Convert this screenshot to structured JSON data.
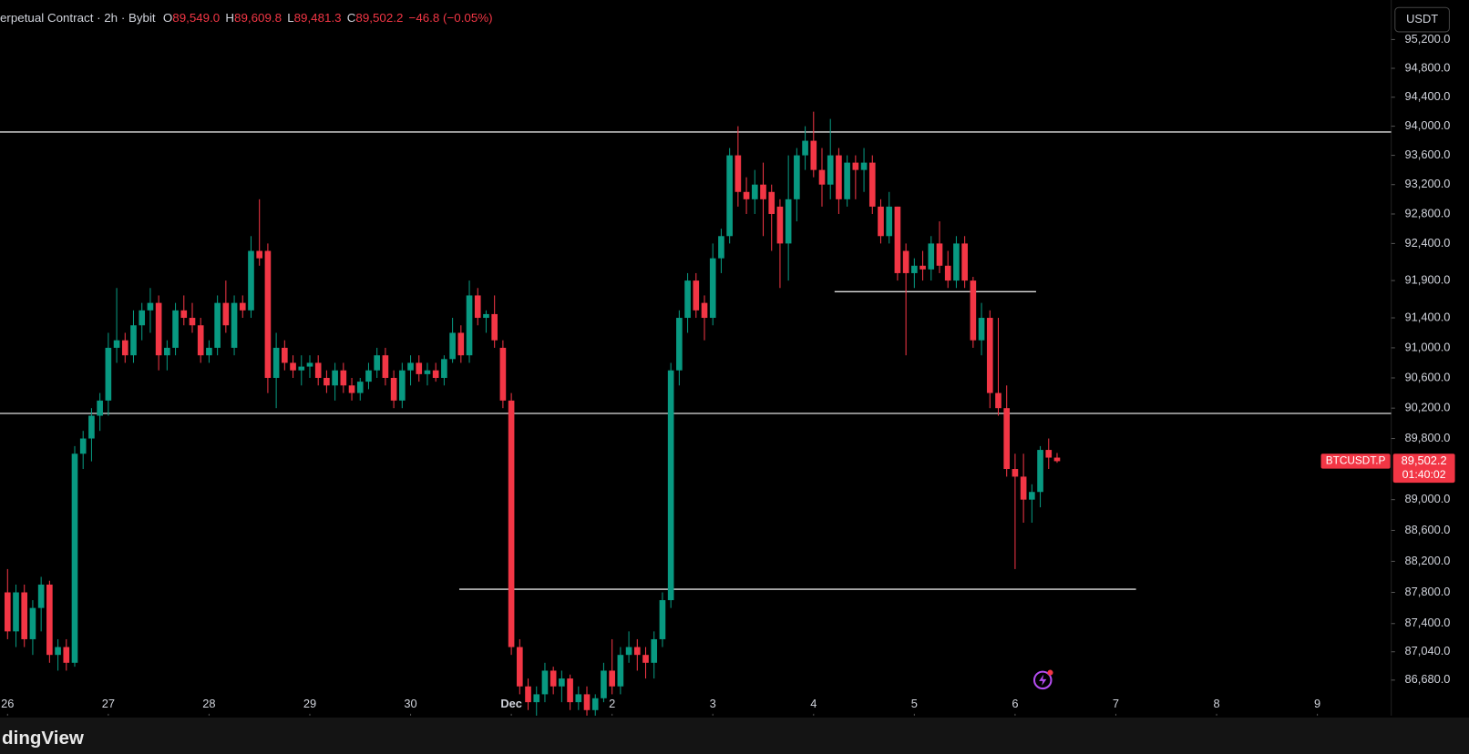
{
  "chart_data": {
    "type": "candlestick",
    "title": "erpetual Contract · 2h · Bybit",
    "ohlc_header": [
      {
        "key": "O",
        "value": "89,549.0"
      },
      {
        "key": "H",
        "value": "89,609.8"
      },
      {
        "key": "L",
        "value": "89,481.3"
      },
      {
        "key": "C",
        "value": "89,502.2"
      }
    ],
    "change": "−46.8 (−0.05%)",
    "currency_button": "USDT",
    "symbol": "BTCUSDT.P",
    "last_price": {
      "value": 89502.2,
      "label": "89,502.2"
    },
    "countdown": "01:40:02",
    "footer": "dingView",
    "log_scale": true,
    "up_color": "#089981",
    "down_color": "#f23645",
    "xlim": [
      -0.9,
      164.8
    ],
    "xticks": [
      {
        "value": 0,
        "label": "26"
      },
      {
        "value": 12,
        "label": "27"
      },
      {
        "value": 24,
        "label": "28"
      },
      {
        "value": 36,
        "label": "29"
      },
      {
        "value": 48,
        "label": "30"
      },
      {
        "value": 60,
        "label": "Dec"
      },
      {
        "value": 72,
        "label": "2"
      },
      {
        "value": 84,
        "label": "3"
      },
      {
        "value": 96,
        "label": "4"
      },
      {
        "value": 108,
        "label": "5"
      },
      {
        "value": 120,
        "label": "6"
      },
      {
        "value": 132,
        "label": "7"
      },
      {
        "value": 144,
        "label": "8"
      },
      {
        "value": 156,
        "label": "9"
      }
    ],
    "ylim": [
      86230,
      95360
    ],
    "yticks": [
      {
        "value": 95200,
        "label": "95,200.0"
      },
      {
        "value": 94800,
        "label": "94,800.0"
      },
      {
        "value": 94400,
        "label": "94,400.0"
      },
      {
        "value": 94000,
        "label": "94,000.0"
      },
      {
        "value": 93600,
        "label": "93,600.0"
      },
      {
        "value": 93200,
        "label": "93,200.0"
      },
      {
        "value": 92800,
        "label": "92,800.0"
      },
      {
        "value": 92400,
        "label": "92,400.0"
      },
      {
        "value": 91900,
        "label": "91,900.0"
      },
      {
        "value": 91400,
        "label": "91,400.0"
      },
      {
        "value": 91000,
        "label": "91,000.0"
      },
      {
        "value": 90600,
        "label": "90,600.0"
      },
      {
        "value": 90200,
        "label": "90,200.0"
      },
      {
        "value": 89800,
        "label": "89,800.0"
      },
      {
        "value": 89000,
        "label": "89,000.0"
      },
      {
        "value": 88600,
        "label": "88,600.0"
      },
      {
        "value": 88200,
        "label": "88,200.0"
      },
      {
        "value": 87800,
        "label": "87,800.0"
      },
      {
        "value": 87400,
        "label": "87,400.0"
      },
      {
        "value": 87040,
        "label": "87,040.0"
      },
      {
        "value": 86680,
        "label": "86,680.0"
      }
    ],
    "drawings": [
      {
        "price": 93920,
        "x": [
          -0.9,
          164.8
        ]
      },
      {
        "price": 90130,
        "x": [
          -0.9,
          164.8
        ]
      },
      {
        "price": 91750,
        "x": [
          98.5,
          122.5
        ]
      },
      {
        "price": 87840,
        "x": [
          53.8,
          134.4
        ]
      }
    ],
    "candles": [
      [
        87800,
        88100,
        87200,
        87300
      ],
      [
        87300,
        87900,
        87100,
        87800
      ],
      [
        87800,
        87900,
        87100,
        87200
      ],
      [
        87200,
        87700,
        87000,
        87600
      ],
      [
        87600,
        88000,
        87300,
        87900
      ],
      [
        87900,
        87950,
        86900,
        87000
      ],
      [
        87000,
        87200,
        86800,
        87100
      ],
      [
        87100,
        87200,
        86800,
        86900
      ],
      [
        86900,
        89700,
        86850,
        89600
      ],
      [
        89600,
        89900,
        89400,
        89800
      ],
      [
        89800,
        90200,
        89500,
        90100
      ],
      [
        90100,
        90400,
        89900,
        90300
      ],
      [
        90300,
        91200,
        90100,
        91000
      ],
      [
        91000,
        91800,
        90800,
        91100
      ],
      [
        91100,
        91200,
        90800,
        90900
      ],
      [
        90900,
        91500,
        90800,
        91300
      ],
      [
        91300,
        91600,
        91100,
        91500
      ],
      [
        91500,
        91800,
        91200,
        91600
      ],
      [
        91600,
        91700,
        90700,
        90900
      ],
      [
        90900,
        91100,
        90700,
        91000
      ],
      [
        91000,
        91600,
        90900,
        91500
      ],
      [
        91500,
        91700,
        91300,
        91400
      ],
      [
        91400,
        91600,
        91200,
        91300
      ],
      [
        91300,
        91400,
        90800,
        90900
      ],
      [
        90900,
        91100,
        90800,
        91000
      ],
      [
        91000,
        91700,
        90900,
        91600
      ],
      [
        91600,
        91900,
        91200,
        91300
      ],
      [
        91000,
        91700,
        90900,
        91600
      ],
      [
        91600,
        91700,
        91400,
        91500
      ],
      [
        91500,
        92500,
        91400,
        92300
      ],
      [
        92300,
        93000,
        92100,
        92200
      ],
      [
        92300,
        92400,
        90400,
        90600
      ],
      [
        90600,
        91200,
        90200,
        91000
      ],
      [
        91000,
        91100,
        90700,
        90800
      ],
      [
        90800,
        90900,
        90600,
        90700
      ],
      [
        90700,
        90900,
        90500,
        90750
      ],
      [
        90750,
        90900,
        90600,
        90800
      ],
      [
        90800,
        90900,
        90500,
        90600
      ],
      [
        90600,
        90700,
        90400,
        90500
      ],
      [
        90500,
        90800,
        90300,
        90700
      ],
      [
        90700,
        90800,
        90400,
        90500
      ],
      [
        90500,
        90600,
        90300,
        90400
      ],
      [
        90400,
        90600,
        90300,
        90550
      ],
      [
        90550,
        90800,
        90450,
        90700
      ],
      [
        90700,
        91000,
        90600,
        90900
      ],
      [
        90900,
        91000,
        90500,
        90600
      ],
      [
        90600,
        90700,
        90200,
        90300
      ],
      [
        90300,
        90800,
        90200,
        90700
      ],
      [
        90700,
        90900,
        90500,
        90800
      ],
      [
        90800,
        90900,
        90550,
        90650
      ],
      [
        90650,
        90800,
        90500,
        90700
      ],
      [
        90700,
        90800,
        90550,
        90600
      ],
      [
        90600,
        90900,
        90500,
        90850
      ],
      [
        90850,
        91400,
        90800,
        91200
      ],
      [
        91200,
        91300,
        90800,
        90900
      ],
      [
        90900,
        91900,
        90800,
        91700
      ],
      [
        91700,
        91800,
        91300,
        91400
      ],
      [
        91400,
        91500,
        91200,
        91450
      ],
      [
        91450,
        91700,
        91000,
        91100
      ],
      [
        91000,
        91100,
        90200,
        90300
      ],
      [
        90300,
        90400,
        87000,
        87100
      ],
      [
        87100,
        87200,
        86500,
        86600
      ],
      [
        86600,
        86700,
        86300,
        86400
      ],
      [
        86400,
        86600,
        86200,
        86500
      ],
      [
        86500,
        86900,
        86400,
        86800
      ],
      [
        86800,
        86850,
        86500,
        86600
      ],
      [
        86600,
        86800,
        86400,
        86700
      ],
      [
        86700,
        86750,
        86300,
        86400
      ],
      [
        86400,
        86600,
        86300,
        86500
      ],
      [
        86500,
        86600,
        86200,
        86300
      ],
      [
        86300,
        86500,
        86200,
        86450
      ],
      [
        86450,
        86900,
        86400,
        86800
      ],
      [
        86800,
        87200,
        86500,
        86600
      ],
      [
        86600,
        87100,
        86500,
        87000
      ],
      [
        87000,
        87300,
        86900,
        87100
      ],
      [
        87100,
        87200,
        86800,
        87000
      ],
      [
        87000,
        87100,
        86700,
        86900
      ],
      [
        86900,
        87300,
        86700,
        87200
      ],
      [
        87200,
        87800,
        87100,
        87700
      ],
      [
        87700,
        90800,
        87600,
        90700
      ],
      [
        90700,
        91500,
        90500,
        91400
      ],
      [
        91400,
        92000,
        91200,
        91900
      ],
      [
        91900,
        92000,
        91400,
        91500
      ],
      [
        91600,
        91700,
        91100,
        91400
      ],
      [
        91400,
        92400,
        91300,
        92200
      ],
      [
        92200,
        92600,
        92000,
        92500
      ],
      [
        92500,
        93700,
        92400,
        93600
      ],
      [
        93600,
        94000,
        92900,
        93100
      ],
      [
        93100,
        93300,
        92800,
        93000
      ],
      [
        93000,
        93400,
        92800,
        93200
      ],
      [
        93200,
        93500,
        92500,
        93000
      ],
      [
        93100,
        93200,
        92300,
        92800
      ],
      [
        92900,
        93000,
        91800,
        92400
      ],
      [
        92400,
        93600,
        91900,
        93000
      ],
      [
        93000,
        93700,
        92700,
        93600
      ],
      [
        93600,
        94000,
        93400,
        93800
      ],
      [
        93800,
        94200,
        93300,
        93400
      ],
      [
        93400,
        93700,
        92900,
        93200
      ],
      [
        93200,
        94100,
        93000,
        93600
      ],
      [
        93600,
        93700,
        92800,
        93000
      ],
      [
        93000,
        93600,
        92900,
        93500
      ],
      [
        93500,
        93600,
        93000,
        93400
      ],
      [
        93400,
        93700,
        93100,
        93500
      ],
      [
        93500,
        93600,
        92800,
        92900
      ],
      [
        92900,
        93000,
        92400,
        92500
      ],
      [
        92500,
        93100,
        92400,
        92900
      ],
      [
        92900,
        92900,
        91900,
        92000
      ],
      [
        92300,
        92400,
        90900,
        92000
      ],
      [
        92000,
        92200,
        91800,
        92100
      ],
      [
        92100,
        92300,
        91900,
        92050
      ],
      [
        92050,
        92500,
        91900,
        92400
      ],
      [
        92400,
        92700,
        92000,
        92100
      ],
      [
        92100,
        92300,
        91800,
        91900
      ],
      [
        91900,
        92500,
        91800,
        92400
      ],
      [
        92400,
        92500,
        91800,
        91900
      ],
      [
        91900,
        91950,
        91000,
        91100
      ],
      [
        91100,
        91600,
        90900,
        91400
      ],
      [
        91400,
        91500,
        90200,
        90400
      ],
      [
        90400,
        91400,
        90100,
        90200
      ],
      [
        90200,
        90500,
        89300,
        89400
      ],
      [
        89400,
        89600,
        88100,
        89300
      ],
      [
        89300,
        89600,
        88700,
        89000
      ],
      [
        89000,
        89200,
        88700,
        89100
      ],
      [
        89100,
        89700,
        88900,
        89650
      ],
      [
        89650,
        89800,
        89400,
        89549
      ],
      [
        89549,
        89609.8,
        89481.3,
        89502.2
      ]
    ]
  }
}
